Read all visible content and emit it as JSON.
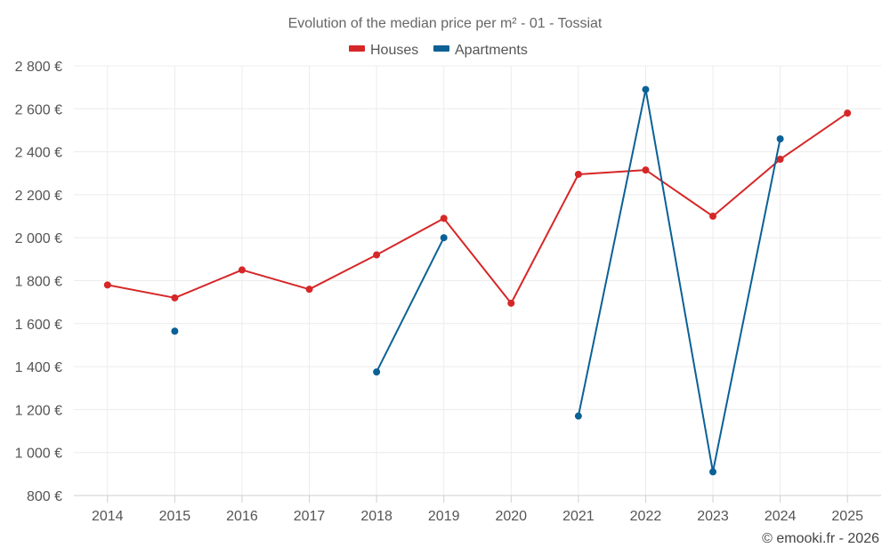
{
  "chart_data": {
    "type": "line",
    "title": "Evolution of the median price per m² - 01 - Tossiat",
    "categories": [
      "2014",
      "2015",
      "2016",
      "2017",
      "2018",
      "2019",
      "2020",
      "2021",
      "2022",
      "2023",
      "2024",
      "2025"
    ],
    "y_ticks": [
      800,
      1000,
      1200,
      1400,
      1600,
      1800,
      2000,
      2200,
      2400,
      2600,
      2800
    ],
    "y_tick_labels": [
      "800 €",
      "1 000 €",
      "1 200 €",
      "1 400 €",
      "1 600 €",
      "1 800 €",
      "2 000 €",
      "2 200 €",
      "2 400 €",
      "2 600 €",
      "2 800 €"
    ],
    "ylim": [
      800,
      2800
    ],
    "legend_position": "top-center",
    "series": [
      {
        "name": "Houses",
        "color": "#d62728",
        "values": [
          1780,
          1720,
          1850,
          1760,
          1920,
          2090,
          1695,
          2295,
          2315,
          2100,
          2365,
          2580
        ]
      },
      {
        "name": "Apartments",
        "color": "#0b6196",
        "values": [
          null,
          1565,
          null,
          null,
          1375,
          2000,
          null,
          1170,
          2690,
          910,
          2460,
          null
        ]
      }
    ],
    "credit": "© emooki.fr - 2026"
  }
}
